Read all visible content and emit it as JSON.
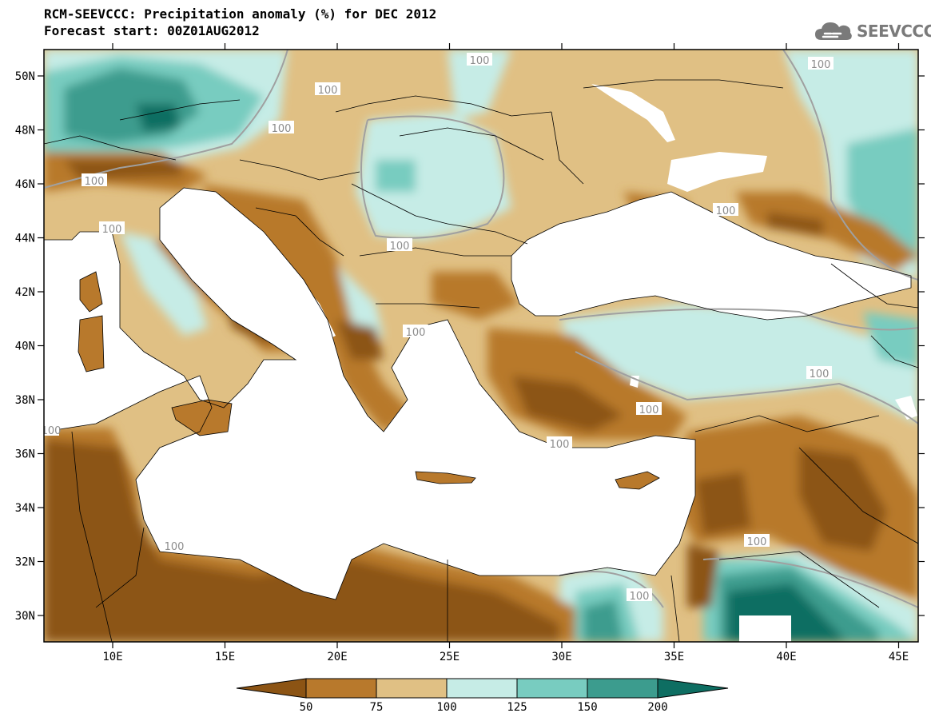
{
  "title_line1": "RCM-SEEVCCC: Precipitation anomaly (%) for DEC 2012",
  "title_line2": "Forecast start: 00Z01AUG2012",
  "logo_text": "SEEVCCC",
  "lat_ticks": [
    "50N",
    "48N",
    "46N",
    "44N",
    "42N",
    "40N",
    "38N",
    "36N",
    "34N",
    "32N",
    "30N"
  ],
  "lon_ticks": [
    "10E",
    "15E",
    "20E",
    "25E",
    "30E",
    "35E",
    "40E",
    "45E"
  ],
  "contour_labels": [
    "100",
    "100",
    "100",
    "100",
    "100",
    "100",
    "100",
    "100",
    "100",
    "100",
    "100",
    "100",
    "100",
    "100",
    "100",
    "100"
  ],
  "colorbar": {
    "labels": [
      "50",
      "75",
      "100",
      "125",
      "150",
      "200"
    ],
    "colors": [
      "#8c5414",
      "#b8792c",
      "#e0c084",
      "#c6ece6",
      "#78ccc0",
      "#3c9c8e",
      "#0e6e62"
    ]
  },
  "colors": {
    "land_dry": "#8c5414",
    "land_mid": "#b8792c",
    "land_light": "#e0c084",
    "wet_light": "#c6ece6",
    "wet_mid": "#78ccc0",
    "wet_dark": "#3c9c8e",
    "wet_darkest": "#0e6e62",
    "sea": "#ffffff"
  }
}
